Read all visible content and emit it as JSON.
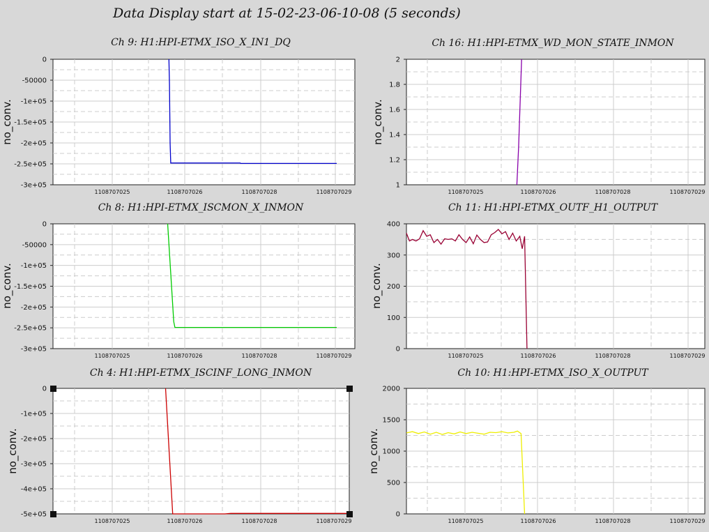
{
  "title": "Data Display start at 15-02-23-06-10-08 (5 seconds)",
  "chart_data": [
    {
      "type": "line",
      "title": "Ch 9: H1:HPI-ETMX_ISO_X_IN1_DQ",
      "ylabel": "no_conv.",
      "ylim": [
        -300000,
        0
      ],
      "yticks": [
        0,
        -50000,
        -100000,
        -150000,
        -200000,
        -250000,
        -300000
      ],
      "ytick_labels": [
        "0",
        "-50000",
        "-1e+05",
        "-1.5e+05",
        "-2e+05",
        "-2.5e+05",
        "-3e+05"
      ],
      "xlim": [
        1108707024.2,
        1108707029.2
      ],
      "xtick_labels": [
        "1108707025",
        "1108707026",
        "1108707028",
        "1108707029"
      ],
      "color": "#0000cc",
      "series": [
        {
          "x": [
            1108707026.12,
            1108707026.13,
            1108707026.14,
            1108707026.15,
            1108707027.3,
            1108707027.31,
            1108707028.9
          ],
          "y": [
            0,
            -60000,
            -200000,
            -248000,
            -248000,
            -249000,
            -249000
          ]
        }
      ]
    },
    {
      "type": "line",
      "title": "Ch 16: H1:HPI-ETMX_WD_MON_STATE_INMON",
      "ylabel": "no_conv.",
      "ylim": [
        1,
        2
      ],
      "yticks": [
        1,
        1.2,
        1.4,
        1.6,
        1.8,
        2
      ],
      "ytick_labels": [
        "1",
        "1.2",
        "1.4",
        "1.6",
        "1.8",
        "2"
      ],
      "xlim": [
        1108707024.2,
        1108707029.2
      ],
      "xtick_labels": [
        "1108707025",
        "1108707026",
        "1108707028",
        "1108707029"
      ],
      "color": "#8800aa",
      "series": [
        {
          "x": [
            1108707026.05,
            1108707026.08,
            1108707026.13
          ],
          "y": [
            1,
            1.3,
            2
          ]
        }
      ]
    },
    {
      "type": "line",
      "title": "Ch 8: H1:HPI-ETMX_ISCMON_X_INMON",
      "ylabel": "no_conv.",
      "ylim": [
        -300000,
        0
      ],
      "yticks": [
        0,
        -50000,
        -100000,
        -150000,
        -200000,
        -250000,
        -300000
      ],
      "ytick_labels": [
        "0",
        "-50000",
        "-1e+05",
        "-1.5e+05",
        "-2e+05",
        "-2.5e+05",
        "-3e+05"
      ],
      "xlim": [
        1108707024.2,
        1108707029.2
      ],
      "xtick_labels": [
        "1108707025",
        "1108707026",
        "1108707028",
        "1108707029"
      ],
      "color": "#00cc00",
      "series": [
        {
          "x": [
            1108707026.1,
            1108707026.2,
            1108707026.22,
            1108707028.9
          ],
          "y": [
            0,
            -235000,
            -249000,
            -249000
          ]
        }
      ]
    },
    {
      "type": "line",
      "title": "Ch 11: H1:HPI-ETMX_OUTF_H1_OUTPUT",
      "ylabel": "no_conv.",
      "ylim": [
        0,
        400
      ],
      "yticks": [
        0,
        100,
        200,
        300,
        400
      ],
      "ytick_labels": [
        "0",
        "100",
        "200",
        "300",
        "400"
      ],
      "xlim": [
        1108707024.2,
        1108707029.2
      ],
      "xtick_labels": [
        "1108707025",
        "1108707026",
        "1108707028",
        "1108707029"
      ],
      "color": "#990033",
      "series": [
        {
          "x": [
            1108707024.2,
            1108707024.25,
            1108707024.3,
            1108707024.36,
            1108707024.42,
            1108707024.48,
            1108707024.54,
            1108707024.6,
            1108707024.66,
            1108707024.72,
            1108707024.78,
            1108707024.84,
            1108707024.9,
            1108707024.96,
            1108707025.02,
            1108707025.08,
            1108707025.14,
            1108707025.2,
            1108707025.26,
            1108707025.32,
            1108707025.38,
            1108707025.44,
            1108707025.5,
            1108707025.56,
            1108707025.62,
            1108707025.68,
            1108707025.74,
            1108707025.8,
            1108707025.86,
            1108707025.92,
            1108707025.98,
            1108707026.04,
            1108707026.1,
            1108707026.14,
            1108707026.18,
            1108707026.22
          ],
          "y": [
            370,
            345,
            350,
            345,
            352,
            378,
            360,
            365,
            340,
            350,
            335,
            352,
            350,
            352,
            345,
            365,
            350,
            340,
            358,
            336,
            364,
            350,
            340,
            342,
            365,
            372,
            382,
            368,
            375,
            350,
            370,
            345,
            360,
            320,
            360,
            0
          ]
        }
      ]
    },
    {
      "type": "line",
      "title": "Ch 4: H1:HPI-ETMX_ISCINF_LONG_INMON",
      "ylabel": "no_conv.",
      "ylim": [
        -500000,
        0
      ],
      "yticks": [
        0,
        -100000,
        -200000,
        -300000,
        -400000,
        -500000
      ],
      "ytick_labels": [
        "0",
        "-1e+05",
        "-2e+05",
        "-3e+05",
        "-4e+05",
        "-5e+05"
      ],
      "xlim": [
        1108707024.2,
        1108707029.2
      ],
      "xtick_labels": [
        "1108707025",
        "1108707026",
        "1108707028",
        "1108707029"
      ],
      "color": "#cc0000",
      "series": [
        {
          "x": [
            1108707026.1,
            1108707026.22,
            1108707026.24,
            1108707027.1,
            1108707027.2,
            1108707029.2
          ],
          "y": [
            0,
            -500000,
            -500000,
            -500000,
            -498000,
            -498000
          ]
        }
      ]
    },
    {
      "type": "line",
      "title": "Ch 10: H1:HPI-ETMX_ISO_X_OUTPUT",
      "ylabel": "no_conv.",
      "ylim": [
        0,
        2000
      ],
      "yticks": [
        0,
        500,
        1000,
        1500,
        2000
      ],
      "ytick_labels": [
        "0",
        "500",
        "1000",
        "1500",
        "2000"
      ],
      "xlim": [
        1108707024.2,
        1108707029.2
      ],
      "xtick_labels": [
        "1108707025",
        "1108707026",
        "1108707028",
        "1108707029"
      ],
      "color": "#eeee00",
      "series": [
        {
          "x": [
            1108707024.2,
            1108707024.3,
            1108707024.4,
            1108707024.5,
            1108707024.6,
            1108707024.7,
            1108707024.8,
            1108707024.9,
            1108707025.0,
            1108707025.1,
            1108707025.2,
            1108707025.3,
            1108707025.4,
            1108707025.5,
            1108707025.6,
            1108707025.7,
            1108707025.8,
            1108707025.9,
            1108707026.0,
            1108707026.06,
            1108707026.12,
            1108707026.18
          ],
          "y": [
            1290,
            1310,
            1280,
            1305,
            1270,
            1300,
            1265,
            1295,
            1275,
            1305,
            1280,
            1300,
            1285,
            1270,
            1300,
            1295,
            1310,
            1290,
            1300,
            1320,
            1280,
            0
          ]
        }
      ]
    }
  ]
}
